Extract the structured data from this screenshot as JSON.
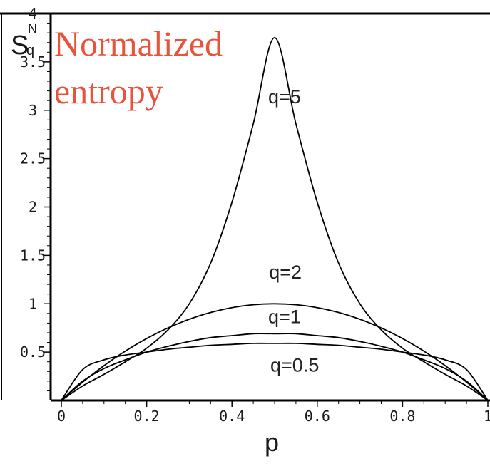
{
  "chart_data": {
    "type": "line",
    "title_lines": [
      "Normalized",
      "entropy"
    ],
    "xlabel": "p",
    "ylabel": {
      "main": "S",
      "sup": "N",
      "sub": "q"
    },
    "xlim": [
      0,
      1
    ],
    "ylim": [
      0,
      4
    ],
    "xticks": [
      0,
      0.2,
      0.4,
      0.6,
      0.8,
      1
    ],
    "xtick_labels": [
      "0",
      "0.2",
      "0.4",
      "0.6",
      "0.8",
      "1"
    ],
    "yticks": [
      0.5,
      1,
      1.5,
      2,
      2.5,
      3,
      3.5,
      4
    ],
    "ytick_labels": [
      "0.5",
      "1",
      "1.5",
      "2",
      "2.5",
      "3",
      "3.5",
      "4"
    ],
    "grid": false,
    "x": [
      0,
      0.05,
      0.1,
      0.15,
      0.2,
      0.25,
      0.3,
      0.35,
      0.4,
      0.45,
      0.5,
      0.55,
      0.6,
      0.65,
      0.7,
      0.75,
      0.8,
      0.85,
      0.9,
      0.95,
      1
    ],
    "series": [
      {
        "name": "q=5",
        "values": [
          0,
          0.15,
          0.27,
          0.4,
          0.54,
          0.73,
          1.0,
          1.42,
          2.05,
          2.86,
          3.75,
          2.86,
          2.05,
          1.42,
          1.0,
          0.73,
          0.54,
          0.4,
          0.27,
          0.15,
          0
        ],
        "label_at": [
          0.485,
          3.07
        ]
      },
      {
        "name": "q=2",
        "values": [
          0,
          0.19,
          0.36,
          0.51,
          0.64,
          0.75,
          0.84,
          0.91,
          0.96,
          0.99,
          1.0,
          0.99,
          0.96,
          0.91,
          0.84,
          0.75,
          0.64,
          0.51,
          0.36,
          0.19,
          0
        ],
        "label_at": [
          0.487,
          1.26
        ]
      },
      {
        "name": "q=1",
        "values": [
          0,
          0.2,
          0.33,
          0.42,
          0.5,
          0.56,
          0.61,
          0.65,
          0.67,
          0.69,
          0.69,
          0.69,
          0.67,
          0.65,
          0.61,
          0.56,
          0.5,
          0.42,
          0.33,
          0.2,
          0
        ],
        "label_at": [
          0.485,
          0.8
        ]
      },
      {
        "name": "q=0.5",
        "values": [
          0,
          0.32,
          0.42,
          0.47,
          0.5,
          0.53,
          0.55,
          0.57,
          0.58,
          0.59,
          0.59,
          0.59,
          0.58,
          0.57,
          0.55,
          0.53,
          0.5,
          0.47,
          0.42,
          0.32,
          0
        ],
        "label_at": [
          0.49,
          0.3
        ]
      }
    ]
  }
}
